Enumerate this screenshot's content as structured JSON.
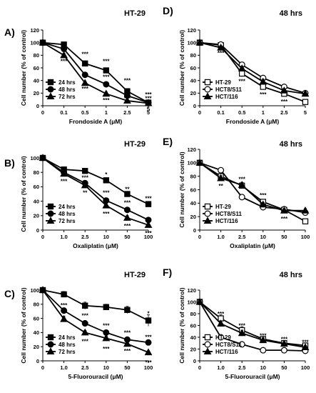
{
  "chart_data": [
    {
      "type": "line",
      "panel_label": "A)",
      "title": "HT-29",
      "xlabel": "Frondoside A (μM)",
      "ylabel": "Cell number (% of control)",
      "x": [
        "0",
        "0.1",
        "0.5",
        "1",
        "2.5",
        "5"
      ],
      "ylim": [
        0,
        120
      ],
      "yticks": [
        0,
        20,
        40,
        60,
        80,
        100,
        120
      ],
      "legend_position": "bottom-left",
      "series": [
        {
          "name": "24 hrs",
          "marker": "square",
          "fill": "filled",
          "values": [
            100,
            97,
            67,
            56,
            23,
            5
          ],
          "errors": [
            0,
            2,
            3,
            3,
            3,
            2
          ]
        },
        {
          "name": "48 hrs",
          "marker": "circle",
          "fill": "filled",
          "values": [
            100,
            90,
            49,
            34,
            16,
            5
          ],
          "errors": [
            0,
            3,
            4,
            4,
            3,
            2
          ]
        },
        {
          "name": "72 hrs",
          "marker": "triangle",
          "fill": "filled",
          "values": [
            100,
            80,
            36,
            19,
            8,
            4
          ],
          "errors": [
            0,
            3,
            3,
            3,
            2,
            1
          ]
        }
      ],
      "annotations": [
        {
          "x": 1,
          "y": 71,
          "text": "***"
        },
        {
          "x": 2,
          "y": 82,
          "text": "***"
        },
        {
          "x": 2,
          "y": 62,
          "text": "***"
        },
        {
          "x": 2,
          "y": 27,
          "text": "***"
        },
        {
          "x": 3,
          "y": 71,
          "text": "***"
        },
        {
          "x": 3,
          "y": 46,
          "text": "***"
        },
        {
          "x": 3,
          "y": 9,
          "text": "***"
        },
        {
          "x": 4,
          "y": 40,
          "text": "***"
        },
        {
          "x": 4,
          "y": 12,
          "text": "***"
        },
        {
          "x": 5,
          "y": 18,
          "text": "***"
        },
        {
          "x": 5,
          "y": 12,
          "text": "***"
        },
        {
          "x": 5,
          "y": -5,
          "text": "5"
        }
      ]
    },
    {
      "type": "line",
      "panel_label": "D)",
      "title": "48 hrs",
      "xlabel": "Frondoside A (μM)",
      "ylabel": "Cell number (% of control)",
      "x": [
        "0",
        "0.1",
        "0.5",
        "1",
        "2.5",
        "5"
      ],
      "ylim": [
        0,
        120
      ],
      "yticks": [
        0,
        20,
        40,
        60,
        80,
        100,
        120
      ],
      "legend_position": "bottom-left",
      "series": [
        {
          "name": "HT-29",
          "marker": "square",
          "fill": "open",
          "values": [
            100,
            96,
            51,
            30,
            19,
            6
          ],
          "errors": [
            0,
            3,
            5,
            4,
            3,
            2
          ]
        },
        {
          "name": "HCT8/S11",
          "marker": "circle",
          "fill": "open",
          "values": [
            100,
            97,
            65,
            44,
            30,
            20
          ],
          "errors": [
            0,
            3,
            4,
            4,
            3,
            3
          ]
        },
        {
          "name": "HCT/116",
          "marker": "triangle",
          "fill": "filled",
          "values": [
            100,
            92,
            59,
            38,
            24,
            19
          ],
          "errors": [
            0,
            3,
            4,
            4,
            3,
            3
          ]
        }
      ],
      "annotations": [
        {
          "x": 1,
          "y": 84,
          "text": "***"
        },
        {
          "x": 2,
          "y": 39,
          "text": "***"
        },
        {
          "x": 3,
          "y": 18,
          "text": "***"
        },
        {
          "x": 4,
          "y": 7,
          "text": "***"
        }
      ]
    },
    {
      "type": "line",
      "panel_label": "B)",
      "title": "HT-29",
      "xlabel": "Oxaliplatin (μM)",
      "ylabel": "Cell number (% of control)",
      "x": [
        "0",
        "1.0",
        "2.5",
        "10",
        "50",
        "100"
      ],
      "ylim": [
        0,
        100
      ],
      "yticks": [
        0,
        20,
        40,
        60,
        80,
        100
      ],
      "legend_position": "bottom-left",
      "series": [
        {
          "name": "24 hrs",
          "marker": "square",
          "fill": "filled",
          "values": [
            100,
            84,
            82,
            69,
            50,
            36
          ],
          "errors": [
            0,
            3,
            3,
            3,
            3,
            3
          ]
        },
        {
          "name": "48 hrs",
          "marker": "circle",
          "fill": "filled",
          "values": [
            100,
            80,
            65,
            41,
            28,
            14
          ],
          "errors": [
            0,
            3,
            4,
            3,
            3,
            2
          ]
        },
        {
          "name": "72 hrs",
          "marker": "triangle",
          "fill": "filled",
          "values": [
            100,
            78,
            62,
            34,
            17,
            7
          ],
          "errors": [
            0,
            3,
            4,
            3,
            3,
            2
          ]
        }
      ],
      "annotations": [
        {
          "x": 1,
          "y": 68,
          "text": "***"
        },
        {
          "x": 2,
          "y": 73,
          "text": "***"
        },
        {
          "x": 2,
          "y": 52,
          "text": "**"
        },
        {
          "x": 3,
          "y": 77,
          "text": "*"
        },
        {
          "x": 3,
          "y": 52,
          "text": "***"
        },
        {
          "x": 3,
          "y": 23,
          "text": "***"
        },
        {
          "x": 4,
          "y": 57,
          "text": "**"
        },
        {
          "x": 4,
          "y": 38,
          "text": "***"
        },
        {
          "x": 4,
          "y": 6,
          "text": "***"
        },
        {
          "x": 5,
          "y": 44,
          "text": "***"
        },
        {
          "x": 5,
          "y": -4,
          "text": "***"
        }
      ]
    },
    {
      "type": "line",
      "panel_label": "E)",
      "title": "48 hrs",
      "xlabel": "Oxaliplatin (μM)",
      "ylabel": "Cell number (% of control)",
      "x": [
        "0",
        "1.0",
        "2.5",
        "10",
        "50",
        "100"
      ],
      "ylim": [
        0,
        120
      ],
      "yticks": [
        0,
        20,
        40,
        60,
        80,
        100,
        120
      ],
      "legend_position": "bottom-left",
      "series": [
        {
          "name": "HT-29",
          "marker": "square",
          "fill": "open",
          "values": [
            100,
            80,
            66,
            42,
            30,
            13
          ],
          "errors": [
            0,
            4,
            4,
            3,
            3,
            2
          ]
        },
        {
          "name": "HCT8/S11",
          "marker": "circle",
          "fill": "open",
          "values": [
            100,
            89,
            49,
            34,
            31,
            26
          ],
          "errors": [
            0,
            3,
            4,
            3,
            3,
            3
          ]
        },
        {
          "name": "HCT/116",
          "marker": "triangle",
          "fill": "filled",
          "values": [
            100,
            77,
            67,
            38,
            29,
            29
          ],
          "errors": [
            0,
            4,
            4,
            3,
            3,
            3
          ]
        }
      ],
      "annotations": [
        {
          "x": 1,
          "y": 66,
          "text": "**"
        },
        {
          "x": 2,
          "y": 76,
          "text": "***"
        },
        {
          "x": 3,
          "y": 52,
          "text": "***"
        },
        {
          "x": 4,
          "y": 17,
          "text": "***"
        }
      ]
    },
    {
      "type": "line",
      "panel_label": "C)",
      "title": "HT-29",
      "xlabel": "5-Fluorouracil (μM)",
      "ylabel": "Cell number (% of control)",
      "x": [
        "0",
        "1.0",
        "2.5",
        "10",
        "50",
        "100"
      ],
      "ylim": [
        0,
        100
      ],
      "yticks": [
        0,
        20,
        40,
        60,
        80,
        100
      ],
      "legend_position": "bottom-left",
      "series": [
        {
          "name": "24 hrs",
          "marker": "square",
          "fill": "filled",
          "values": [
            100,
            94,
            78,
            76,
            72,
            57
          ],
          "errors": [
            0,
            4,
            5,
            4,
            5,
            8
          ]
        },
        {
          "name": "48 hrs",
          "marker": "circle",
          "fill": "filled",
          "values": [
            100,
            71,
            53,
            40,
            30,
            26
          ],
          "errors": [
            0,
            4,
            4,
            3,
            3,
            3
          ]
        },
        {
          "name": "72 hrs",
          "marker": "triangle",
          "fill": "filled",
          "values": [
            100,
            59,
            40,
            32,
            24,
            12
          ],
          "errors": [
            0,
            4,
            3,
            3,
            3,
            2
          ]
        }
      ],
      "annotations": [
        {
          "x": 1,
          "y": 79,
          "text": "***"
        },
        {
          "x": 2,
          "y": 64,
          "text": "***"
        },
        {
          "x": 2,
          "y": 28,
          "text": "***"
        },
        {
          "x": 3,
          "y": 50,
          "text": "***"
        },
        {
          "x": 3,
          "y": 17,
          "text": "***"
        },
        {
          "x": 4,
          "y": 40,
          "text": "***"
        },
        {
          "x": 4,
          "y": 14,
          "text": "***"
        },
        {
          "x": 5,
          "y": 67,
          "text": "*"
        },
        {
          "x": 5,
          "y": 34,
          "text": "***"
        },
        {
          "x": 5,
          "y": -2,
          "text": "***"
        }
      ]
    },
    {
      "type": "line",
      "panel_label": "F)",
      "title": "48 hrs",
      "xlabel": "5-Fluorouracil (μM)",
      "ylabel": "Cell number (% of control)",
      "x": [
        "0",
        "1.0",
        "2.5",
        "10",
        "50",
        "100"
      ],
      "ylim": [
        0,
        120
      ],
      "yticks": [
        0,
        20,
        40,
        60,
        80,
        100,
        120
      ],
      "legend_position": "bottom-left",
      "series": [
        {
          "name": "HT-29",
          "marker": "square",
          "fill": "open",
          "values": [
            100,
            72,
            52,
            37,
            30,
            26
          ],
          "errors": [
            0,
            6,
            6,
            4,
            4,
            3
          ]
        },
        {
          "name": "HCT8/S11",
          "marker": "circle",
          "fill": "open",
          "values": [
            100,
            40,
            28,
            18,
            18,
            17
          ],
          "errors": [
            0,
            3,
            3,
            3,
            2,
            2
          ]
        },
        {
          "name": "HCT/116",
          "marker": "triangle",
          "fill": "filled",
          "values": [
            100,
            63,
            47,
            35,
            29,
            23
          ],
          "errors": [
            0,
            5,
            5,
            4,
            3,
            3
          ]
        }
      ],
      "annotations": [
        {
          "x": 1,
          "y": 80,
          "text": "***"
        },
        {
          "x": 2,
          "y": 60,
          "text": "***"
        },
        {
          "x": 3,
          "y": 43,
          "text": "***"
        },
        {
          "x": 4,
          "y": 37,
          "text": "***"
        },
        {
          "x": 5,
          "y": 32,
          "text": "***"
        }
      ]
    }
  ]
}
